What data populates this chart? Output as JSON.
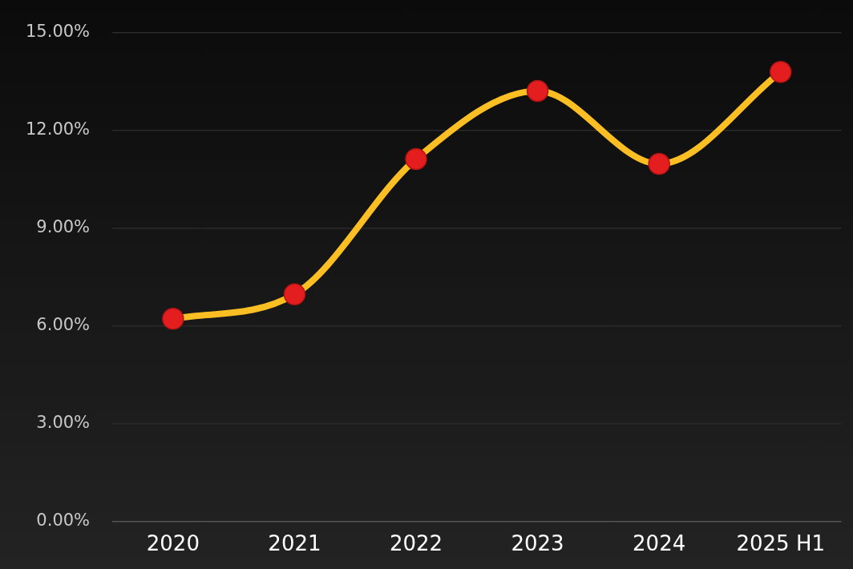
{
  "chart_data": {
    "type": "line",
    "categories": [
      "2020",
      "2021",
      "2022",
      "2023",
      "2024",
      "2025 H1"
    ],
    "series": [
      {
        "color": "#fbbf24",
        "values": [
          6.22,
          6.97,
          11.12,
          13.21,
          10.97,
          13.79
        ]
      }
    ],
    "ylim": [
      0,
      15
    ],
    "yticks": [
      {
        "value": 0,
        "label": "0.00%"
      },
      {
        "value": 3,
        "label": "3.00%"
      },
      {
        "value": 6,
        "label": "6.00%"
      },
      {
        "value": 9,
        "label": "9.00%"
      },
      {
        "value": 12,
        "label": "12.00%"
      },
      {
        "value": 15,
        "label": "15.00%"
      }
    ],
    "grid": "y",
    "legend": false,
    "marker": "circle",
    "line_style": "solid"
  }
}
